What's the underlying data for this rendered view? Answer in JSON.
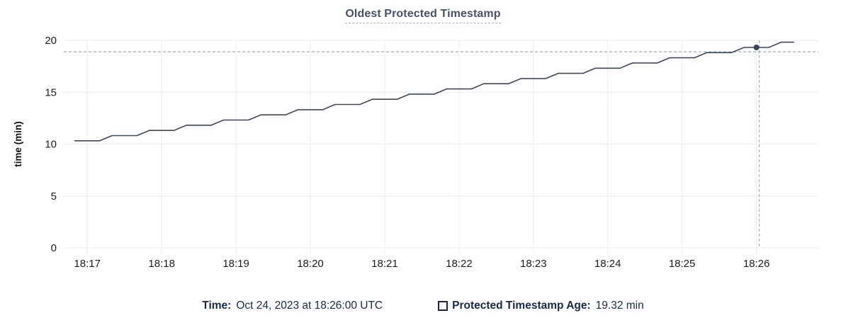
{
  "title": "Oldest Protected Timestamp",
  "chart_data": {
    "type": "line",
    "title": "Oldest Protected Timestamp",
    "xlabel": "",
    "ylabel": "time (min)",
    "ylim": [
      0,
      20
    ],
    "y_ticks": [
      0,
      5,
      10,
      15,
      20
    ],
    "x_ticks": [
      "18:17",
      "18:18",
      "18:19",
      "18:20",
      "18:21",
      "18:22",
      "18:23",
      "18:24",
      "18:25",
      "18:26"
    ],
    "x_domain": [
      "18:16:41",
      "18:26:50"
    ],
    "grid": true,
    "legend_position": "bottom",
    "series": [
      {
        "name": "Protected Timestamp Age",
        "unit": "min",
        "points": [
          [
            "18:16:50",
            10.32
          ],
          [
            "18:17:00",
            10.32
          ],
          [
            "18:17:10",
            10.32
          ],
          [
            "18:17:20",
            10.82
          ],
          [
            "18:17:30",
            10.82
          ],
          [
            "18:17:40",
            10.82
          ],
          [
            "18:17:50",
            11.32
          ],
          [
            "18:18:00",
            11.32
          ],
          [
            "18:18:10",
            11.32
          ],
          [
            "18:18:20",
            11.82
          ],
          [
            "18:18:30",
            11.82
          ],
          [
            "18:18:40",
            11.82
          ],
          [
            "18:18:50",
            12.32
          ],
          [
            "18:19:00",
            12.32
          ],
          [
            "18:19:10",
            12.32
          ],
          [
            "18:19:20",
            12.82
          ],
          [
            "18:19:30",
            12.82
          ],
          [
            "18:19:40",
            12.82
          ],
          [
            "18:19:50",
            13.32
          ],
          [
            "18:20:00",
            13.32
          ],
          [
            "18:20:10",
            13.32
          ],
          [
            "18:20:20",
            13.82
          ],
          [
            "18:20:30",
            13.82
          ],
          [
            "18:20:40",
            13.82
          ],
          [
            "18:20:50",
            14.32
          ],
          [
            "18:21:00",
            14.32
          ],
          [
            "18:21:10",
            14.32
          ],
          [
            "18:21:20",
            14.82
          ],
          [
            "18:21:30",
            14.82
          ],
          [
            "18:21:40",
            14.82
          ],
          [
            "18:21:50",
            15.32
          ],
          [
            "18:22:00",
            15.32
          ],
          [
            "18:22:10",
            15.32
          ],
          [
            "18:22:20",
            15.82
          ],
          [
            "18:22:30",
            15.82
          ],
          [
            "18:22:40",
            15.82
          ],
          [
            "18:22:50",
            16.32
          ],
          [
            "18:23:00",
            16.32
          ],
          [
            "18:23:10",
            16.32
          ],
          [
            "18:23:20",
            16.82
          ],
          [
            "18:23:30",
            16.82
          ],
          [
            "18:23:40",
            16.82
          ],
          [
            "18:23:50",
            17.32
          ],
          [
            "18:24:00",
            17.32
          ],
          [
            "18:24:10",
            17.32
          ],
          [
            "18:24:20",
            17.82
          ],
          [
            "18:24:30",
            17.82
          ],
          [
            "18:24:40",
            17.82
          ],
          [
            "18:24:50",
            18.32
          ],
          [
            "18:25:00",
            18.32
          ],
          [
            "18:25:10",
            18.32
          ],
          [
            "18:25:20",
            18.82
          ],
          [
            "18:25:30",
            18.82
          ],
          [
            "18:25:40",
            18.82
          ],
          [
            "18:25:50",
            19.32
          ],
          [
            "18:26:00",
            19.32
          ],
          [
            "18:26:10",
            19.32
          ],
          [
            "18:26:20",
            19.82
          ],
          [
            "18:26:30",
            19.82
          ]
        ]
      }
    ],
    "hover": {
      "time": "18:26:00",
      "value": 19.32,
      "guide_value": 18.9
    }
  },
  "legend": {
    "time_label": "Time:",
    "time_value": "Oct 24, 2023 at 18:26:00 UTC",
    "series_label": "Protected Timestamp Age:",
    "series_value": "19.32 min"
  },
  "colors": {
    "line": "#3c4860",
    "grid": "#ececec",
    "guide": "#9cafbf",
    "title": "#46526b",
    "legend_text": "#16294a",
    "tick_text": "#1c1c1c",
    "axis_label": "#111111"
  }
}
